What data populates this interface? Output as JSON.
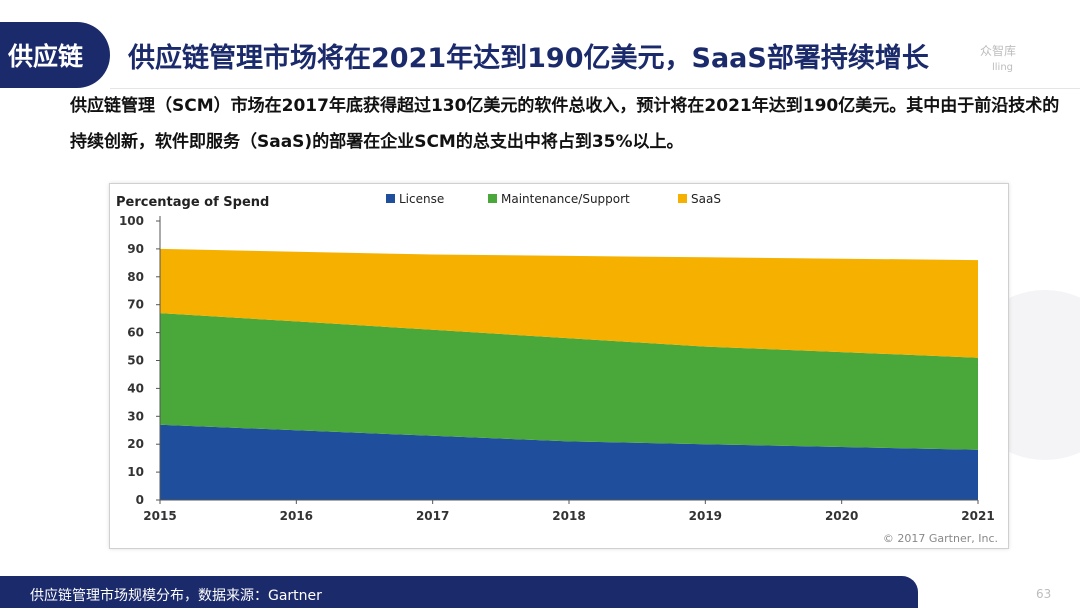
{
  "header": {
    "tab_label": "供应链",
    "title": "供应链管理市场将在2021年达到190亿美元，SaaS部署持续增长",
    "logo_line1": "众智库",
    "logo_line2": "lling"
  },
  "intro": {
    "text": "供应链管理（SCM）市场在2017年底获得超过130亿美元的软件总收入，预计将在2021年达到190亿美元。其中由于前沿技术的持续创新，软件即服务（SaaS)的部署在企业SCM的总支出中将占到35%以上。"
  },
  "chart_data": {
    "type": "area",
    "title": "Percentage of Spend",
    "x": [
      "2015",
      "2016",
      "2017",
      "2018",
      "2019",
      "2020",
      "2021"
    ],
    "ylim": [
      0,
      100
    ],
    "yticks": [
      0,
      10,
      20,
      30,
      40,
      50,
      60,
      70,
      80,
      90,
      100
    ],
    "grid": false,
    "legend_position": "top",
    "stacked": true,
    "series": [
      {
        "name": "License",
        "color": "#1f4e9c",
        "values": [
          27,
          25,
          23,
          21,
          20,
          19,
          18
        ]
      },
      {
        "name": "Maintenance/Support",
        "color": "#4aa83a",
        "values": [
          40,
          39,
          38,
          37,
          35,
          34,
          33
        ]
      },
      {
        "name": "SaaS",
        "color": "#f5b000",
        "values": [
          23,
          25,
          27,
          29.5,
          32,
          33.5,
          35
        ]
      }
    ],
    "source_note": "© 2017 Gartner, Inc."
  },
  "footer": {
    "text": "供应链管理市场规模分布，数据来源：Gartner",
    "page_number": "63"
  }
}
